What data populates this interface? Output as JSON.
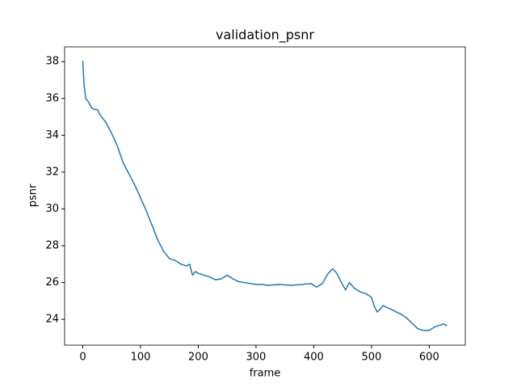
{
  "chart_data": {
    "type": "line",
    "title": "validation_psnr",
    "x_label": "frame",
    "y_label": "psnr",
    "x": [
      0,
      2,
      5,
      10,
      15,
      20,
      25,
      30,
      40,
      50,
      60,
      70,
      80,
      90,
      100,
      110,
      120,
      130,
      140,
      150,
      160,
      170,
      180,
      185,
      190,
      195,
      200,
      210,
      220,
      230,
      240,
      250,
      260,
      270,
      280,
      290,
      300,
      310,
      320,
      340,
      360,
      380,
      395,
      405,
      415,
      425,
      433,
      440,
      448,
      455,
      462,
      470,
      480,
      490,
      500,
      505,
      510,
      515,
      520,
      530,
      540,
      550,
      560,
      570,
      580,
      590,
      600,
      610,
      620,
      625,
      631
    ],
    "series": [
      {
        "name": "validation_psnr",
        "color": "#1f77b4",
        "values": [
          38.05,
          36.8,
          36.0,
          35.8,
          35.5,
          35.4,
          35.4,
          35.1,
          34.7,
          34.1,
          33.4,
          32.5,
          31.9,
          31.3,
          30.6,
          29.9,
          29.1,
          28.3,
          27.7,
          27.3,
          27.2,
          27.0,
          26.9,
          27.0,
          26.4,
          26.6,
          26.5,
          26.4,
          26.3,
          26.15,
          26.2,
          26.4,
          26.2,
          26.05,
          26.0,
          25.95,
          25.9,
          25.9,
          25.85,
          25.9,
          25.85,
          25.9,
          25.95,
          25.75,
          25.95,
          26.5,
          26.75,
          26.5,
          26.0,
          25.6,
          26.0,
          25.7,
          25.5,
          25.4,
          25.2,
          24.7,
          24.4,
          24.55,
          24.75,
          24.6,
          24.45,
          24.3,
          24.1,
          23.8,
          23.5,
          23.4,
          23.4,
          23.6,
          23.7,
          23.75,
          23.65
        ]
      }
    ],
    "xlim": [
      -31.5,
      662.5
    ],
    "ylim": [
      22.6,
      38.8
    ],
    "xticks": [
      0,
      100,
      200,
      300,
      400,
      500,
      600
    ],
    "yticks": [
      24,
      26,
      28,
      30,
      32,
      34,
      36,
      38
    ],
    "grid": false
  }
}
